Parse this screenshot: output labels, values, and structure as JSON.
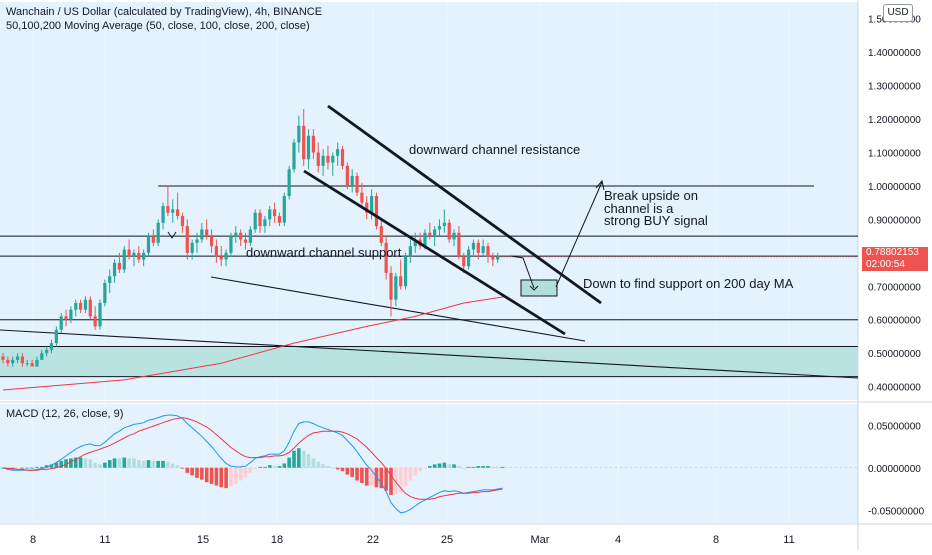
{
  "header": {
    "title": "Wanchain / US Dollar (calculated by TradingView), 4h, BINANCE",
    "ma_legend": "50,100,200 Moving Average (50, close, 100, close, 200, close)",
    "macd_legend": "MACD (12, 26, close, 9)",
    "currency": "USD"
  },
  "last_price": {
    "value": "0.78802153",
    "countdown": "02:00:54"
  },
  "colors": {
    "up": "#26a69a",
    "down": "#ef5350",
    "zone": "#b2dfdb",
    "bg_band": "#e3f2fd",
    "ma200": "#f23645",
    "macd_line": "#2196f3",
    "signal_line": "#f23645"
  },
  "chart_data": [
    {
      "type": "candlestick",
      "title": "Wanchain / US Dollar (calculated by TradingView), 4h, BINANCE",
      "x_ticks": [
        "8",
        "11",
        "15",
        "18",
        "22",
        "25",
        "Mar",
        "4",
        "8",
        "11"
      ],
      "y_ticks": [
        "1.50000000",
        "1.40000000",
        "1.30000000",
        "1.20000000",
        "1.10000000",
        "1.00000000",
        "0.90000000",
        "0.80000000",
        "0.70000000",
        "0.60000000",
        "0.50000000",
        "0.40000000"
      ],
      "ylim": [
        0.36,
        1.55
      ],
      "last_price": 0.78802153,
      "candles": [
        {
          "o": 0.49,
          "h": 0.5,
          "l": 0.47,
          "c": 0.48
        },
        {
          "o": 0.48,
          "h": 0.49,
          "l": 0.46,
          "c": 0.47
        },
        {
          "o": 0.47,
          "h": 0.49,
          "l": 0.46,
          "c": 0.48
        },
        {
          "o": 0.48,
          "h": 0.5,
          "l": 0.47,
          "c": 0.49
        },
        {
          "o": 0.49,
          "h": 0.5,
          "l": 0.46,
          "c": 0.47
        },
        {
          "o": 0.47,
          "h": 0.48,
          "l": 0.46,
          "c": 0.47
        },
        {
          "o": 0.47,
          "h": 0.48,
          "l": 0.46,
          "c": 0.46
        },
        {
          "o": 0.46,
          "h": 0.49,
          "l": 0.46,
          "c": 0.48
        },
        {
          "o": 0.48,
          "h": 0.51,
          "l": 0.48,
          "c": 0.5
        },
        {
          "o": 0.5,
          "h": 0.52,
          "l": 0.49,
          "c": 0.51
        },
        {
          "o": 0.51,
          "h": 0.54,
          "l": 0.5,
          "c": 0.53
        },
        {
          "o": 0.53,
          "h": 0.58,
          "l": 0.52,
          "c": 0.57
        },
        {
          "o": 0.57,
          "h": 0.62,
          "l": 0.56,
          "c": 0.61
        },
        {
          "o": 0.61,
          "h": 0.63,
          "l": 0.58,
          "c": 0.6
        },
        {
          "o": 0.6,
          "h": 0.64,
          "l": 0.59,
          "c": 0.63
        },
        {
          "o": 0.63,
          "h": 0.66,
          "l": 0.61,
          "c": 0.65
        },
        {
          "o": 0.65,
          "h": 0.66,
          "l": 0.62,
          "c": 0.63
        },
        {
          "o": 0.63,
          "h": 0.67,
          "l": 0.62,
          "c": 0.66
        },
        {
          "o": 0.66,
          "h": 0.67,
          "l": 0.6,
          "c": 0.61
        },
        {
          "o": 0.61,
          "h": 0.64,
          "l": 0.57,
          "c": 0.58
        },
        {
          "o": 0.58,
          "h": 0.66,
          "l": 0.57,
          "c": 0.65
        },
        {
          "o": 0.65,
          "h": 0.72,
          "l": 0.64,
          "c": 0.71
        },
        {
          "o": 0.71,
          "h": 0.75,
          "l": 0.68,
          "c": 0.73
        },
        {
          "o": 0.73,
          "h": 0.78,
          "l": 0.71,
          "c": 0.77
        },
        {
          "o": 0.77,
          "h": 0.8,
          "l": 0.74,
          "c": 0.75
        },
        {
          "o": 0.75,
          "h": 0.82,
          "l": 0.74,
          "c": 0.81
        },
        {
          "o": 0.81,
          "h": 0.84,
          "l": 0.78,
          "c": 0.79
        },
        {
          "o": 0.79,
          "h": 0.81,
          "l": 0.76,
          "c": 0.8
        },
        {
          "o": 0.8,
          "h": 0.82,
          "l": 0.77,
          "c": 0.78
        },
        {
          "o": 0.78,
          "h": 0.81,
          "l": 0.76,
          "c": 0.8
        },
        {
          "o": 0.8,
          "h": 0.86,
          "l": 0.79,
          "c": 0.85
        },
        {
          "o": 0.85,
          "h": 0.87,
          "l": 0.82,
          "c": 0.83
        },
        {
          "o": 0.83,
          "h": 0.9,
          "l": 0.82,
          "c": 0.89
        },
        {
          "o": 0.89,
          "h": 0.95,
          "l": 0.87,
          "c": 0.94
        },
        {
          "o": 0.94,
          "h": 1.0,
          "l": 0.91,
          "c": 0.92
        },
        {
          "o": 0.92,
          "h": 0.96,
          "l": 0.89,
          "c": 0.93
        },
        {
          "o": 0.93,
          "h": 0.98,
          "l": 0.9,
          "c": 0.91
        },
        {
          "o": 0.91,
          "h": 0.92,
          "l": 0.86,
          "c": 0.88
        },
        {
          "o": 0.88,
          "h": 0.9,
          "l": 0.78,
          "c": 0.8
        },
        {
          "o": 0.8,
          "h": 0.84,
          "l": 0.78,
          "c": 0.83
        },
        {
          "o": 0.83,
          "h": 0.86,
          "l": 0.8,
          "c": 0.84
        },
        {
          "o": 0.84,
          "h": 0.89,
          "l": 0.83,
          "c": 0.87
        },
        {
          "o": 0.87,
          "h": 0.9,
          "l": 0.84,
          "c": 0.85
        },
        {
          "o": 0.85,
          "h": 0.87,
          "l": 0.8,
          "c": 0.82
        },
        {
          "o": 0.82,
          "h": 0.84,
          "l": 0.77,
          "c": 0.79
        },
        {
          "o": 0.79,
          "h": 0.82,
          "l": 0.76,
          "c": 0.78
        },
        {
          "o": 0.78,
          "h": 0.81,
          "l": 0.76,
          "c": 0.8
        },
        {
          "o": 0.8,
          "h": 0.86,
          "l": 0.79,
          "c": 0.85
        },
        {
          "o": 0.85,
          "h": 0.88,
          "l": 0.83,
          "c": 0.86
        },
        {
          "o": 0.86,
          "h": 0.87,
          "l": 0.82,
          "c": 0.84
        },
        {
          "o": 0.84,
          "h": 0.86,
          "l": 0.81,
          "c": 0.83
        },
        {
          "o": 0.83,
          "h": 0.88,
          "l": 0.82,
          "c": 0.87
        },
        {
          "o": 0.87,
          "h": 0.93,
          "l": 0.86,
          "c": 0.92
        },
        {
          "o": 0.92,
          "h": 0.93,
          "l": 0.86,
          "c": 0.88
        },
        {
          "o": 0.88,
          "h": 0.91,
          "l": 0.86,
          "c": 0.9
        },
        {
          "o": 0.9,
          "h": 0.94,
          "l": 0.88,
          "c": 0.93
        },
        {
          "o": 0.93,
          "h": 0.95,
          "l": 0.89,
          "c": 0.91
        },
        {
          "o": 0.91,
          "h": 0.92,
          "l": 0.88,
          "c": 0.89
        },
        {
          "o": 0.89,
          "h": 0.98,
          "l": 0.88,
          "c": 0.97
        },
        {
          "o": 0.97,
          "h": 1.06,
          "l": 0.96,
          "c": 1.05
        },
        {
          "o": 1.05,
          "h": 1.14,
          "l": 1.04,
          "c": 1.13
        },
        {
          "o": 1.13,
          "h": 1.21,
          "l": 1.1,
          "c": 1.18
        },
        {
          "o": 1.18,
          "h": 1.23,
          "l": 1.06,
          "c": 1.08
        },
        {
          "o": 1.08,
          "h": 1.17,
          "l": 1.05,
          "c": 1.15
        },
        {
          "o": 1.15,
          "h": 1.17,
          "l": 1.08,
          "c": 1.1
        },
        {
          "o": 1.1,
          "h": 1.13,
          "l": 1.04,
          "c": 1.06
        },
        {
          "o": 1.06,
          "h": 1.11,
          "l": 1.03,
          "c": 1.09
        },
        {
          "o": 1.09,
          "h": 1.12,
          "l": 1.05,
          "c": 1.07
        },
        {
          "o": 1.07,
          "h": 1.1,
          "l": 1.03,
          "c": 1.09
        },
        {
          "o": 1.09,
          "h": 1.13,
          "l": 1.06,
          "c": 1.11
        },
        {
          "o": 1.11,
          "h": 1.12,
          "l": 1.05,
          "c": 1.06
        },
        {
          "o": 1.06,
          "h": 1.07,
          "l": 0.99,
          "c": 1.0
        },
        {
          "o": 1.0,
          "h": 1.05,
          "l": 0.98,
          "c": 1.03
        },
        {
          "o": 1.03,
          "h": 1.04,
          "l": 0.97,
          "c": 0.98
        },
        {
          "o": 0.98,
          "h": 1.01,
          "l": 0.94,
          "c": 0.95
        },
        {
          "o": 0.95,
          "h": 0.97,
          "l": 0.9,
          "c": 0.92
        },
        {
          "o": 0.92,
          "h": 0.99,
          "l": 0.9,
          "c": 0.97
        },
        {
          "o": 0.97,
          "h": 0.98,
          "l": 0.87,
          "c": 0.88
        },
        {
          "o": 0.88,
          "h": 0.9,
          "l": 0.82,
          "c": 0.83
        },
        {
          "o": 0.83,
          "h": 0.85,
          "l": 0.72,
          "c": 0.74
        },
        {
          "o": 0.74,
          "h": 0.76,
          "l": 0.61,
          "c": 0.66
        },
        {
          "o": 0.66,
          "h": 0.74,
          "l": 0.64,
          "c": 0.73
        },
        {
          "o": 0.73,
          "h": 0.78,
          "l": 0.69,
          "c": 0.7
        },
        {
          "o": 0.7,
          "h": 0.8,
          "l": 0.69,
          "c": 0.79
        },
        {
          "o": 0.79,
          "h": 0.84,
          "l": 0.77,
          "c": 0.82
        },
        {
          "o": 0.82,
          "h": 0.86,
          "l": 0.8,
          "c": 0.84
        },
        {
          "o": 0.84,
          "h": 0.86,
          "l": 0.81,
          "c": 0.82
        },
        {
          "o": 0.82,
          "h": 0.87,
          "l": 0.81,
          "c": 0.86
        },
        {
          "o": 0.86,
          "h": 0.89,
          "l": 0.84,
          "c": 0.85
        },
        {
          "o": 0.85,
          "h": 0.88,
          "l": 0.82,
          "c": 0.87
        },
        {
          "o": 0.87,
          "h": 0.9,
          "l": 0.85,
          "c": 0.88
        },
        {
          "o": 0.88,
          "h": 0.93,
          "l": 0.86,
          "c": 0.89
        },
        {
          "o": 0.89,
          "h": 0.9,
          "l": 0.83,
          "c": 0.84
        },
        {
          "o": 0.84,
          "h": 0.87,
          "l": 0.82,
          "c": 0.86
        },
        {
          "o": 0.86,
          "h": 0.88,
          "l": 0.78,
          "c": 0.79
        },
        {
          "o": 0.79,
          "h": 0.8,
          "l": 0.74,
          "c": 0.76
        },
        {
          "o": 0.76,
          "h": 0.82,
          "l": 0.75,
          "c": 0.81
        },
        {
          "o": 0.81,
          "h": 0.84,
          "l": 0.79,
          "c": 0.83
        },
        {
          "o": 0.83,
          "h": 0.84,
          "l": 0.78,
          "c": 0.8
        },
        {
          "o": 0.8,
          "h": 0.84,
          "l": 0.79,
          "c": 0.82
        },
        {
          "o": 0.82,
          "h": 0.83,
          "l": 0.77,
          "c": 0.79
        },
        {
          "o": 0.79,
          "h": 0.8,
          "l": 0.76,
          "c": 0.78
        },
        {
          "o": 0.78,
          "h": 0.8,
          "l": 0.77,
          "c": 0.79
        }
      ],
      "ma200": [
        [
          0,
          0.39
        ],
        [
          25,
          0.42
        ],
        [
          45,
          0.47
        ],
        [
          60,
          0.53
        ],
        [
          75,
          0.58
        ],
        [
          85,
          0.61
        ],
        [
          95,
          0.65
        ],
        [
          104,
          0.67
        ]
      ],
      "horizontal_levels": [
        {
          "price": 1.0,
          "from_bar": 32
        },
        {
          "price": 0.85,
          "from_bar": 0
        },
        {
          "price": 0.79,
          "from_bar": 0
        },
        {
          "price": 0.6,
          "from_bar": 0
        },
        {
          "price": 0.52,
          "from_bar": 0
        },
        {
          "price": 0.43,
          "from_bar": 0
        }
      ],
      "zone": {
        "from": 0.43,
        "to": 0.52
      },
      "annotations": [
        "downward channel resistance",
        "downward channel support",
        "Break upside on",
        "channel is a",
        "strong BUY signal",
        "Down to find support on 200 day MA"
      ]
    },
    {
      "type": "macd",
      "title": "MACD (12, 26, close, 9)",
      "y_ticks": [
        "0.05000000",
        "0.00000000",
        "-0.05000000"
      ],
      "ylim": [
        -0.065,
        0.075
      ],
      "macd": [
        0.0,
        -0.002,
        -0.003,
        -0.003,
        -0.003,
        -0.003,
        -0.003,
        -0.002,
        -0.001,
        0.001,
        0.003,
        0.006,
        0.01,
        0.014,
        0.018,
        0.022,
        0.025,
        0.027,
        0.028,
        0.026,
        0.026,
        0.03,
        0.035,
        0.04,
        0.043,
        0.047,
        0.049,
        0.051,
        0.052,
        0.053,
        0.056,
        0.057,
        0.059,
        0.061,
        0.062,
        0.062,
        0.061,
        0.058,
        0.052,
        0.047,
        0.042,
        0.037,
        0.031,
        0.025,
        0.018,
        0.011,
        0.005,
        0.002,
        0.001,
        0.001,
        0.002,
        0.006,
        0.011,
        0.013,
        0.014,
        0.016,
        0.016,
        0.016,
        0.02,
        0.03,
        0.043,
        0.052,
        0.054,
        0.054,
        0.052,
        0.049,
        0.047,
        0.045,
        0.043,
        0.041,
        0.038,
        0.032,
        0.026,
        0.019,
        0.011,
        0.003,
        -0.003,
        -0.011,
        -0.018,
        -0.028,
        -0.041,
        -0.048,
        -0.053,
        -0.052,
        -0.049,
        -0.045,
        -0.041,
        -0.038,
        -0.035,
        -0.032,
        -0.029,
        -0.027,
        -0.028,
        -0.027,
        -0.028,
        -0.03,
        -0.029,
        -0.028,
        -0.027,
        -0.026,
        -0.026,
        -0.026,
        -0.025,
        -0.024
      ],
      "signal": [
        0.0,
        -0.001,
        -0.001,
        -0.002,
        -0.002,
        -0.003,
        -0.003,
        -0.003,
        -0.002,
        -0.002,
        -0.001,
        0.0,
        0.002,
        0.004,
        0.007,
        0.01,
        0.013,
        0.016,
        0.018,
        0.02,
        0.022,
        0.024,
        0.026,
        0.029,
        0.032,
        0.035,
        0.038,
        0.04,
        0.043,
        0.045,
        0.047,
        0.049,
        0.051,
        0.053,
        0.055,
        0.057,
        0.058,
        0.059,
        0.058,
        0.056,
        0.054,
        0.051,
        0.048,
        0.044,
        0.039,
        0.034,
        0.029,
        0.024,
        0.02,
        0.016,
        0.013,
        0.012,
        0.012,
        0.012,
        0.013,
        0.013,
        0.014,
        0.014,
        0.015,
        0.018,
        0.023,
        0.029,
        0.034,
        0.038,
        0.041,
        0.042,
        0.043,
        0.043,
        0.043,
        0.043,
        0.042,
        0.04,
        0.037,
        0.034,
        0.029,
        0.024,
        0.018,
        0.012,
        0.006,
        -0.001,
        -0.009,
        -0.017,
        -0.024,
        -0.03,
        -0.034,
        -0.036,
        -0.037,
        -0.037,
        -0.037,
        -0.036,
        -0.034,
        -0.033,
        -0.032,
        -0.031,
        -0.03,
        -0.03,
        -0.03,
        -0.029,
        -0.029,
        -0.028,
        -0.028,
        -0.027,
        -0.026,
        -0.025
      ]
    }
  ]
}
